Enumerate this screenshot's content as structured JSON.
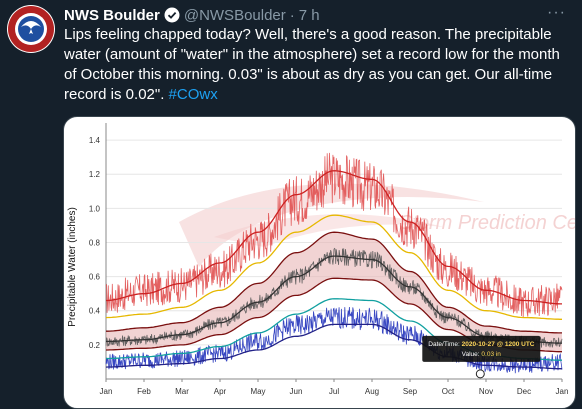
{
  "tweet": {
    "author_name": "NWS Boulder",
    "handle": "@NWSBoulder",
    "separator": "·",
    "time": "7 h",
    "more_label": "···",
    "text_lines": [
      "Lips feeling chapped today? Well, there's a good reason. The precipitable",
      "water (amount of \"water\" in the atmosphere) set a record low for the month",
      "of October this morning. 0.03\" is about as dry as you can get. Our all-time"
    ],
    "text_last_line": "record is 0.02\". ",
    "hashtag": "#COwx"
  },
  "chart_data": {
    "type": "line",
    "ylabel": "Precipitable Water (inches)",
    "ylim": [
      0,
      1.5
    ],
    "yticks": [
      "0.2",
      "0.4",
      "0.6",
      "0.8",
      "1.0",
      "1.2",
      "1.4"
    ],
    "months": [
      "Jan",
      "Feb",
      "Mar",
      "Apr",
      "May",
      "Jun",
      "Jul",
      "Aug",
      "Sep",
      "Oct",
      "Nov",
      "Dec",
      "Jan"
    ],
    "watermark": "Storm Prediction Center",
    "series": [
      {
        "color": "#cc2222",
        "values": [
          0.46,
          0.5,
          0.56,
          0.68,
          0.86,
          1.08,
          1.22,
          1.17,
          0.92,
          0.66,
          0.52,
          0.46,
          0.44
        ]
      },
      {
        "color": "#e6b800",
        "values": [
          0.36,
          0.38,
          0.42,
          0.52,
          0.68,
          0.86,
          0.96,
          0.92,
          0.74,
          0.52,
          0.4,
          0.36,
          0.35
        ]
      },
      {
        "color": "#7a1010",
        "values": [
          0.28,
          0.3,
          0.33,
          0.42,
          0.56,
          0.74,
          0.86,
          0.82,
          0.63,
          0.42,
          0.31,
          0.28,
          0.27
        ]
      },
      {
        "color": "#333333",
        "values": [
          0.22,
          0.23,
          0.26,
          0.33,
          0.45,
          0.6,
          0.72,
          0.7,
          0.54,
          0.36,
          0.25,
          0.22,
          0.21
        ]
      },
      {
        "color": "#7a1010",
        "values": [
          0.17,
          0.18,
          0.2,
          0.26,
          0.36,
          0.49,
          0.59,
          0.58,
          0.44,
          0.29,
          0.2,
          0.17,
          0.16
        ]
      },
      {
        "color": "#11a0a0",
        "values": [
          0.12,
          0.13,
          0.15,
          0.19,
          0.27,
          0.38,
          0.47,
          0.46,
          0.34,
          0.21,
          0.14,
          0.12,
          0.11
        ]
      },
      {
        "color": "#222288",
        "values": [
          0.07,
          0.08,
          0.09,
          0.12,
          0.17,
          0.25,
          0.32,
          0.32,
          0.23,
          0.13,
          0.08,
          0.07,
          0.06
        ]
      }
    ],
    "noisy_series": [
      {
        "color": "#e05050",
        "amplitude": 0.09,
        "values": [
          0.47,
          0.52,
          0.55,
          0.64,
          0.82,
          1.05,
          1.18,
          1.12,
          0.9,
          0.64,
          0.52,
          0.45,
          0.47
        ]
      },
      {
        "color": "#555555",
        "amplitude": 0.04,
        "values": [
          0.22,
          0.23,
          0.26,
          0.33,
          0.45,
          0.6,
          0.72,
          0.7,
          0.54,
          0.36,
          0.25,
          0.22,
          0.21
        ]
      },
      {
        "color": "#2233bb",
        "amplitude": 0.07,
        "values": [
          0.1,
          0.11,
          0.12,
          0.15,
          0.22,
          0.31,
          0.36,
          0.35,
          0.26,
          0.15,
          0.09,
          0.08,
          0.1
        ]
      }
    ],
    "tooltip": {
      "date_label": "Date/Time:",
      "date_value": "2020-10-27 @ 1200 UTC",
      "value_label": "Value:",
      "value_value": "0.03 in"
    },
    "highlight_point": {
      "month_index": 9.85,
      "value": 0.03
    }
  }
}
